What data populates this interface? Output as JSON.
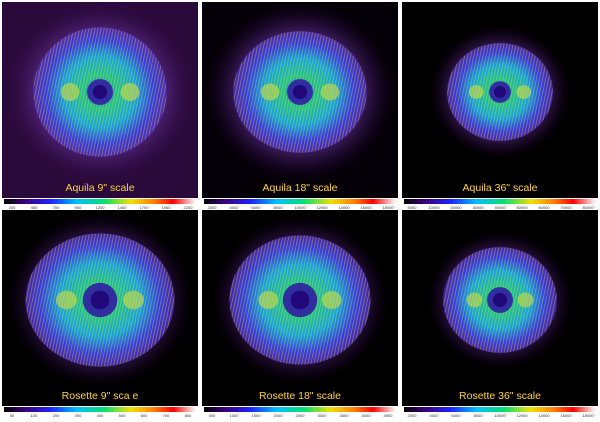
{
  "panels": [
    {
      "id": "aquila-9",
      "caption": "Aquila 9\" scale",
      "radius": 0.34,
      "ry": 0.33,
      "hole": 0.03,
      "halo": 0.5,
      "bg": "#2a0a3a",
      "ticks": [
        "200",
        "450",
        "700",
        "950",
        "1200",
        "1450",
        "1700",
        "1950",
        "2200"
      ]
    },
    {
      "id": "aquila-18",
      "caption": "Aquila 18\" scale",
      "radius": 0.34,
      "ry": 0.31,
      "hole": 0.03,
      "halo": 0.48,
      "bg": "#050008",
      "ticks": [
        "2000",
        "4000",
        "6000",
        "8000",
        "10000",
        "12000",
        "14000",
        "16000",
        "18000"
      ]
    },
    {
      "id": "aquila-36",
      "caption": "Aquila 36\" scale",
      "radius": 0.27,
      "ry": 0.25,
      "hole": 0.025,
      "halo": 0.36,
      "bg": "#000000",
      "ticks": [
        "5000",
        "10000",
        "20000",
        "30000",
        "40000",
        "50000",
        "60000",
        "70000",
        "80000"
      ]
    },
    {
      "id": "rosette-9",
      "caption": "Rosette 9\" sca e",
      "radius": 0.38,
      "ry": 0.34,
      "hole": 0.04,
      "halo": 0.47,
      "bg": "#000000",
      "ticks": [
        "50",
        "100",
        "200",
        "300",
        "400",
        "500",
        "600",
        "700",
        "800"
      ]
    },
    {
      "id": "rosette-18",
      "caption": "Rosette 18\" scale",
      "radius": 0.36,
      "ry": 0.33,
      "hole": 0.04,
      "halo": 0.45,
      "bg": "#000000",
      "ticks": [
        "500",
        "1000",
        "1500",
        "2000",
        "2500",
        "3000",
        "3500",
        "4000",
        "4500"
      ]
    },
    {
      "id": "rosette-36",
      "caption": "Rosette 36\" scale",
      "radius": 0.29,
      "ry": 0.27,
      "hole": 0.03,
      "halo": 0.37,
      "bg": "#000000",
      "ticks": [
        "2000",
        "4000",
        "6000",
        "8000",
        "10000",
        "12000",
        "14000",
        "16000",
        "18000"
      ]
    }
  ]
}
